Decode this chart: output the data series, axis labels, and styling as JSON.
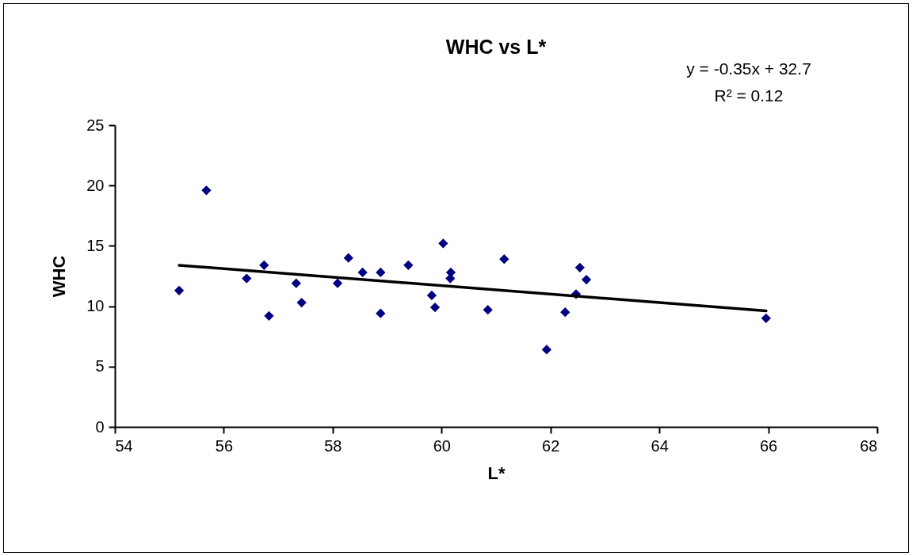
{
  "chart_data": {
    "type": "scatter",
    "title": "WHC vs L*",
    "xlabel": "L*",
    "ylabel": "WHC",
    "annotations": [
      "y = -0.35x + 32.7",
      "R² = 0.12"
    ],
    "xlim": [
      54,
      68
    ],
    "xticks": [
      54,
      56,
      58,
      60,
      62,
      64,
      66,
      68
    ],
    "ylim": [
      0,
      25
    ],
    "yticks": [
      0,
      5,
      10,
      15,
      20,
      25
    ],
    "series": [
      {
        "marker": "diamond",
        "color": "#000080",
        "x": [
          55.18,
          55.68,
          56.42,
          56.74,
          56.83,
          57.33,
          57.43,
          58.09,
          58.29,
          58.55,
          58.88,
          58.88,
          59.39,
          59.82,
          59.88,
          60.03,
          60.17,
          60.16,
          60.85,
          61.15,
          61.93,
          62.27,
          62.47,
          62.54,
          62.66,
          65.96
        ],
        "values": [
          11.3,
          19.6,
          12.3,
          13.4,
          9.2,
          11.9,
          10.3,
          11.9,
          14.0,
          12.8,
          12.8,
          9.4,
          13.4,
          10.9,
          9.9,
          15.2,
          12.8,
          12.3,
          9.7,
          13.9,
          6.4,
          9.5,
          11.0,
          13.2,
          12.2,
          9.0
        ]
      },
      {
        "type": "line",
        "marker": "none",
        "color": "#000000",
        "x": [
          55.18,
          65.96
        ],
        "values": [
          13.39,
          9.61
        ]
      }
    ]
  }
}
